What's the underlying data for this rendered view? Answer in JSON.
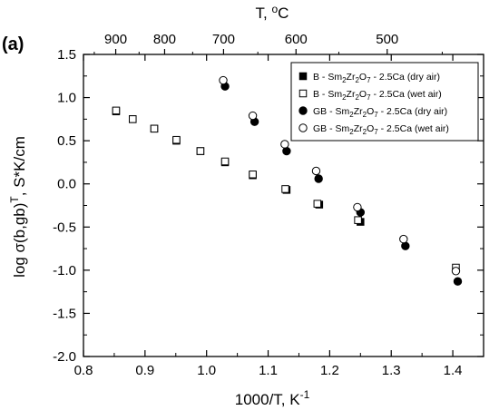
{
  "chart_data": {
    "type": "scatter",
    "panel_label": "(a)",
    "xlabel": "1000/T, K",
    "xlabel_sup": "-1",
    "top_xlabel": "T, ",
    "top_xlabel_sup": "o",
    "top_xlabel_unit": "C",
    "ylabel": "log σ(b,gb)",
    "ylabel_sup": "T",
    "ylabel_unit": ", S*K/cm",
    "xlim": [
      0.8,
      1.45
    ],
    "ylim": [
      -2.0,
      1.5
    ],
    "x_ticks": [
      "0.8",
      "0.9",
      "1.0",
      "1.1",
      "1.2",
      "1.3",
      "1.4"
    ],
    "y_ticks": [
      "-2.0",
      "-1.5",
      "-1.0",
      "-0.5",
      "0.0",
      "0.5",
      "1.0",
      "1.5"
    ],
    "top_ticks_celsius": [
      900,
      800,
      700,
      600,
      500
    ],
    "grid": false,
    "legend_position": "top-right",
    "series": [
      {
        "name": "B - Sm2Zr2O7 - 2.5Ca (dry air)",
        "marker": "filled-square",
        "x": [
          0.853,
          0.88,
          0.915,
          0.951,
          0.99,
          1.03,
          1.075,
          1.13,
          1.183,
          1.25
        ],
        "y": [
          0.84,
          0.75,
          0.64,
          0.5,
          0.38,
          0.25,
          0.1,
          -0.07,
          -0.24,
          -0.44
        ]
      },
      {
        "name": "B - Sm2Zr2O7 - 2.5Ca (wet air)",
        "marker": "open-square",
        "x": [
          0.853,
          0.88,
          0.915,
          0.951,
          0.99,
          1.03,
          1.075,
          1.128,
          1.18,
          1.246,
          1.405
        ],
        "y": [
          0.85,
          0.75,
          0.64,
          0.51,
          0.38,
          0.26,
          0.11,
          -0.06,
          -0.23,
          -0.42,
          -0.97
        ]
      },
      {
        "name": "GB - Sm2Zr2O7 - 2.5Ca (dry air)",
        "marker": "filled-circle",
        "x": [
          1.03,
          1.078,
          1.13,
          1.182,
          1.25,
          1.323,
          1.408
        ],
        "y": [
          1.13,
          0.72,
          0.38,
          0.06,
          -0.33,
          -0.72,
          -1.13
        ]
      },
      {
        "name": "GB - Sm2Zr2O7 - 2.5Ca (wet air)",
        "marker": "open-circle",
        "x": [
          1.027,
          1.075,
          1.127,
          1.178,
          1.245,
          1.32,
          1.405
        ],
        "y": [
          1.2,
          0.79,
          0.46,
          0.15,
          -0.27,
          -0.64,
          -1.01
        ]
      }
    ],
    "legend": {
      "entries": [
        {
          "prefix": "B - Sm",
          "s1": "2",
          "mid1": "Zr",
          "s2": "2",
          "mid2": "O",
          "s3": "7",
          "suffix": " - 2.5Ca (dry air)",
          "marker": "filled-square"
        },
        {
          "prefix": "B - Sm",
          "s1": "2",
          "mid1": "Zr",
          "s2": "2",
          "mid2": "O",
          "s3": "7",
          "suffix": " - 2.5Ca (wet air)",
          "marker": "open-square"
        },
        {
          "prefix": "GB - Sm",
          "s1": "2",
          "mid1": "Zr",
          "s2": "2",
          "mid2": "O",
          "s3": "7",
          "suffix": " - 2.5Ca (dry air)",
          "marker": "filled-circle"
        },
        {
          "prefix": "GB - Sm",
          "s1": "2",
          "mid1": "Zr",
          "s2": "2",
          "mid2": "O",
          "s3": "7",
          "suffix": " - 2.5Ca (wet air)",
          "marker": "open-circle"
        }
      ]
    },
    "colors": {
      "axis": "#000000",
      "marker": "#000000",
      "background": "#ffffff"
    }
  }
}
